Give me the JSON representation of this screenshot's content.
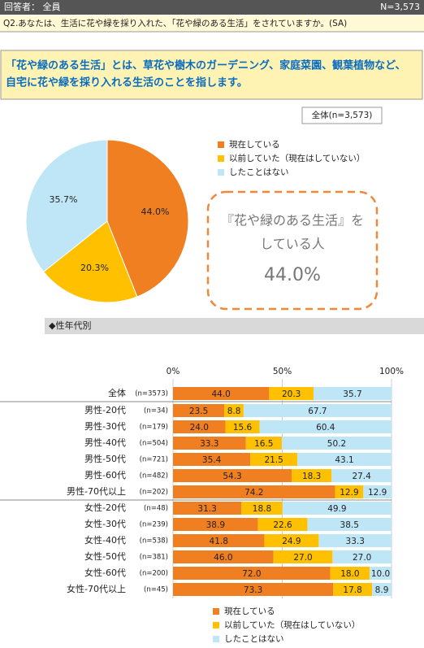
{
  "header": {
    "respondents": "回答者： 全員",
    "n": "N=3,573"
  },
  "question": "Q2.あなたは、生活に花や緑を採り入れた、「花や緑のある生活」をされていますか。(SA)",
  "definition": {
    "lines": [
      "「花や緑のある生活」とは、草花や樹木のガーデニング、家庭菜園、観葉植物など、",
      "自宅に花や緑を採り入れる生活のことを指します。"
    ]
  },
  "chart_data": [
    {
      "type": "pie",
      "title": "全体(n=3,573)",
      "categories": [
        "現在している",
        "以前していた（現在はしていない）",
        "したことはない"
      ],
      "values": [
        44.0,
        20.3,
        35.7
      ],
      "value_labels": [
        "44.0%",
        "20.3%",
        "35.7%"
      ],
      "colors": [
        "#f07f22",
        "#ffc000",
        "#bfe6f6"
      ],
      "annotation": [
        "『花や緑のある生活』を",
        "している人",
        "44.0%"
      ]
    },
    {
      "type": "stacked-bar",
      "orientation": "horizontal",
      "title": "◆性年代別",
      "categories": [
        "全体",
        "男性-20代",
        "男性-30代",
        "男性-40代",
        "男性-50代",
        "男性-60代",
        "男性-70代以上",
        "女性-20代",
        "女性-30代",
        "女性-40代",
        "女性-50代",
        "女性-60代",
        "女性-70代以上"
      ],
      "category_notes": [
        "(n=3573)",
        "(n=34)",
        "(n=179)",
        "(n=504)",
        "(n=721)",
        "(n=482)",
        "(n=202)",
        "(n=48)",
        "(n=239)",
        "(n=538)",
        "(n=381)",
        "(n=200)",
        "(n=45)"
      ],
      "series": [
        {
          "name": "現在している",
          "color": "#f07f22",
          "values": [
            44.0,
            23.5,
            24.0,
            33.3,
            35.4,
            54.3,
            74.2,
            31.3,
            38.9,
            41.8,
            46.0,
            72.0,
            73.3
          ],
          "value_labels": [
            "44.0",
            "23.5",
            "24.0",
            "33.3",
            "35.4",
            "54.3",
            "74.2",
            "31.3",
            "38.9",
            "41.8",
            "46.0",
            "72.0",
            "73.3"
          ]
        },
        {
          "name": "以前していた（現在はしていない）",
          "color": "#ffc000",
          "values": [
            20.3,
            8.8,
            15.6,
            16.5,
            21.5,
            18.3,
            12.9,
            18.8,
            22.6,
            24.9,
            27.0,
            18.0,
            17.8
          ],
          "value_labels": [
            "20.3",
            "8.8",
            "15.6",
            "16.5",
            "21.5",
            "18.3",
            "12.9",
            "18.8",
            "22.6",
            "24.9",
            "27.0",
            "18.0",
            "17.8"
          ]
        },
        {
          "name": "したことはない",
          "color": "#bfe6f6",
          "values": [
            35.7,
            67.7,
            60.4,
            50.2,
            43.1,
            27.4,
            12.9,
            49.9,
            38.5,
            33.3,
            27.0,
            10.0,
            8.9
          ],
          "value_labels": [
            "35.7",
            "67.7",
            "60.4",
            "50.2",
            "43.1",
            "27.4",
            "12.9",
            "49.9",
            "38.5",
            "33.3",
            "27.0",
            "10.0",
            "8.9"
          ]
        }
      ],
      "xlim": [
        0,
        100
      ],
      "xticks": [
        {
          "value": 0,
          "label": "0%"
        },
        {
          "value": 50,
          "label": "50%"
        },
        {
          "value": 100,
          "label": "100%"
        }
      ],
      "grid": true
    }
  ]
}
